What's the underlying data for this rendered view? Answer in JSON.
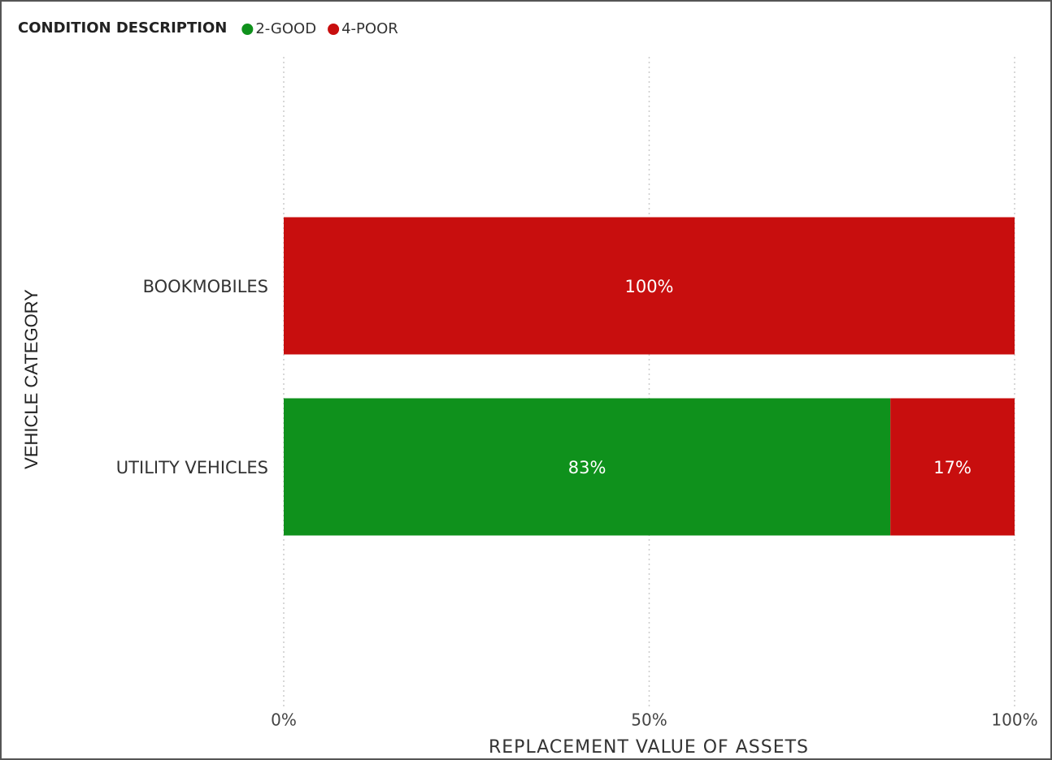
{
  "chart_data": {
    "type": "bar",
    "orientation": "horizontal",
    "stacked": true,
    "legend_title": "CONDITION DESCRIPTION",
    "x_label": "REPLACEMENT VALUE OF ASSETS",
    "y_label": "VEHICLE CATEGORY",
    "categories": [
      "BOOKMOBILES",
      "UTILITY VEHICLES"
    ],
    "series": [
      {
        "name": "2-GOOD",
        "color": "#0f911c",
        "values": [
          null,
          83
        ],
        "value_labels": [
          null,
          "83%"
        ]
      },
      {
        "name": "4-POOR",
        "color": "#c80e0e",
        "values": [
          100,
          17
        ],
        "value_labels": [
          "100%",
          "17%"
        ]
      }
    ],
    "xlim": [
      0,
      100
    ],
    "xticks": [
      {
        "value": 0,
        "label": "0%"
      },
      {
        "value": 50,
        "label": "50%"
      },
      {
        "value": 100,
        "label": "100%"
      }
    ],
    "grid": true
  }
}
